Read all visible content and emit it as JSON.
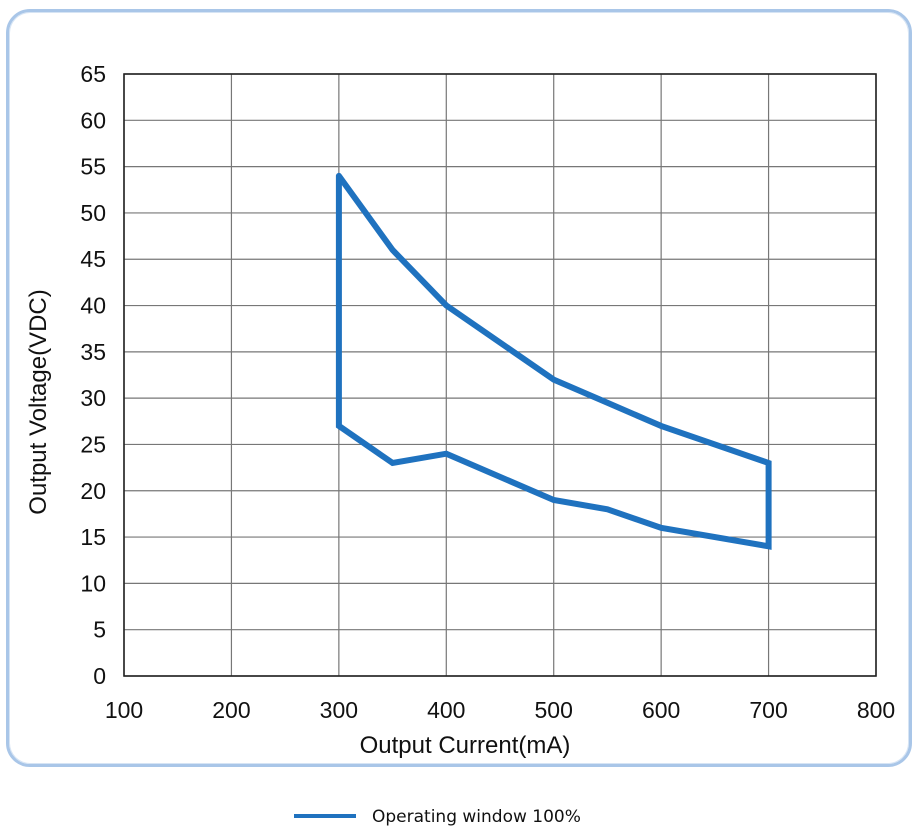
{
  "chart_data": {
    "type": "line",
    "title": "",
    "xlabel": "Output Current(mA)",
    "ylabel": "Output Voltage(VDC)",
    "xlim": [
      100,
      800
    ],
    "ylim": [
      0,
      65
    ],
    "xticks": [
      100,
      200,
      300,
      400,
      500,
      600,
      700,
      800
    ],
    "yticks": [
      0,
      5,
      10,
      15,
      20,
      25,
      30,
      35,
      40,
      45,
      50,
      55,
      60,
      65
    ],
    "grid": true,
    "legend": "bottom-center",
    "series": [
      {
        "name": "Operating window 100%",
        "color": "#1f72bf",
        "closed": true,
        "x": [
          300,
          350,
          400,
          500,
          550,
          600,
          700,
          700,
          600,
          550,
          500,
          400,
          350,
          300,
          300
        ],
        "y": [
          54,
          46,
          40,
          32,
          29.5,
          27,
          23,
          14,
          16,
          18,
          19,
          24,
          23,
          27,
          54
        ]
      }
    ]
  }
}
